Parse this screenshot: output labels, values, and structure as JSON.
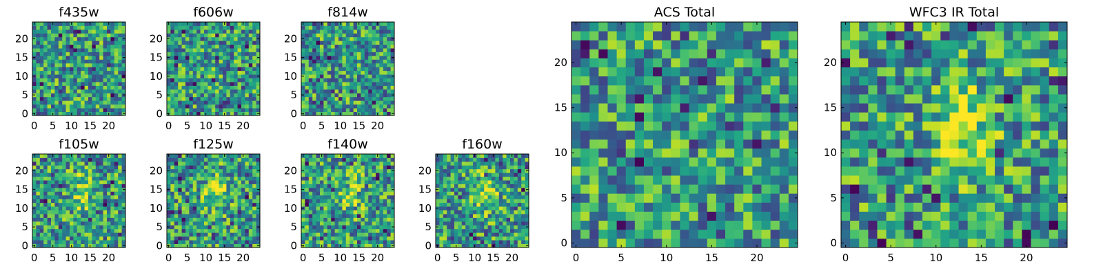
{
  "chart_data": [
    {
      "type": "heatmap",
      "title": "f435w",
      "size": 25,
      "xticks": [
        "0",
        "5",
        "10",
        "15",
        "20"
      ],
      "yticks": [
        "0",
        "5",
        "10",
        "15",
        "20"
      ],
      "colormap": "viridis",
      "note": "25x25 pixel cutout; mostly uniform noise"
    },
    {
      "type": "heatmap",
      "title": "f606w",
      "size": 25,
      "xticks": [
        "0",
        "5",
        "10",
        "15",
        "20"
      ],
      "yticks": [
        "0",
        "5",
        "10",
        "15",
        "20"
      ],
      "colormap": "viridis"
    },
    {
      "type": "heatmap",
      "title": "f814w",
      "size": 25,
      "xticks": [
        "0",
        "5",
        "10",
        "15",
        "20"
      ],
      "yticks": [
        "0",
        "5",
        "10",
        "15",
        "20"
      ],
      "colormap": "viridis"
    },
    {
      "type": "heatmap",
      "title": "f105w",
      "size": 25,
      "xticks": [
        "0",
        "5",
        "10",
        "15",
        "20"
      ],
      "yticks": [
        "0",
        "5",
        "10",
        "15",
        "20"
      ],
      "colormap": "viridis",
      "bright_region": [
        13,
        14
      ]
    },
    {
      "type": "heatmap",
      "title": "f125w",
      "size": 25,
      "xticks": [
        "0",
        "5",
        "10",
        "15",
        "20"
      ],
      "yticks": [
        "0",
        "5",
        "10",
        "15",
        "20"
      ],
      "colormap": "viridis",
      "bright_region": [
        13,
        14
      ]
    },
    {
      "type": "heatmap",
      "title": "f140w",
      "size": 25,
      "xticks": [
        "0",
        "5",
        "10",
        "15",
        "20"
      ],
      "yticks": [
        "0",
        "5",
        "10",
        "15",
        "20"
      ],
      "colormap": "viridis",
      "bright_region": [
        13,
        14
      ]
    },
    {
      "type": "heatmap",
      "title": "f160w",
      "size": 25,
      "xticks": [
        "0",
        "5",
        "10",
        "15",
        "20"
      ],
      "yticks": [
        "0",
        "5",
        "10",
        "15",
        "20"
      ],
      "colormap": "viridis",
      "bright_region": [
        13,
        14
      ]
    },
    {
      "type": "heatmap",
      "title": "ACS Total",
      "size": 25,
      "xticks": [
        "0",
        "5",
        "10",
        "15",
        "20"
      ],
      "yticks": [
        "0",
        "5",
        "10",
        "15",
        "20"
      ],
      "colormap": "viridis"
    },
    {
      "type": "heatmap",
      "title": "WFC3 IR Total",
      "size": 25,
      "xticks": [
        "0",
        "5",
        "10",
        "15",
        "20"
      ],
      "yticks": [
        "0",
        "5",
        "10",
        "15",
        "20"
      ],
      "colormap": "viridis",
      "bright_region": [
        13,
        13
      ]
    }
  ]
}
